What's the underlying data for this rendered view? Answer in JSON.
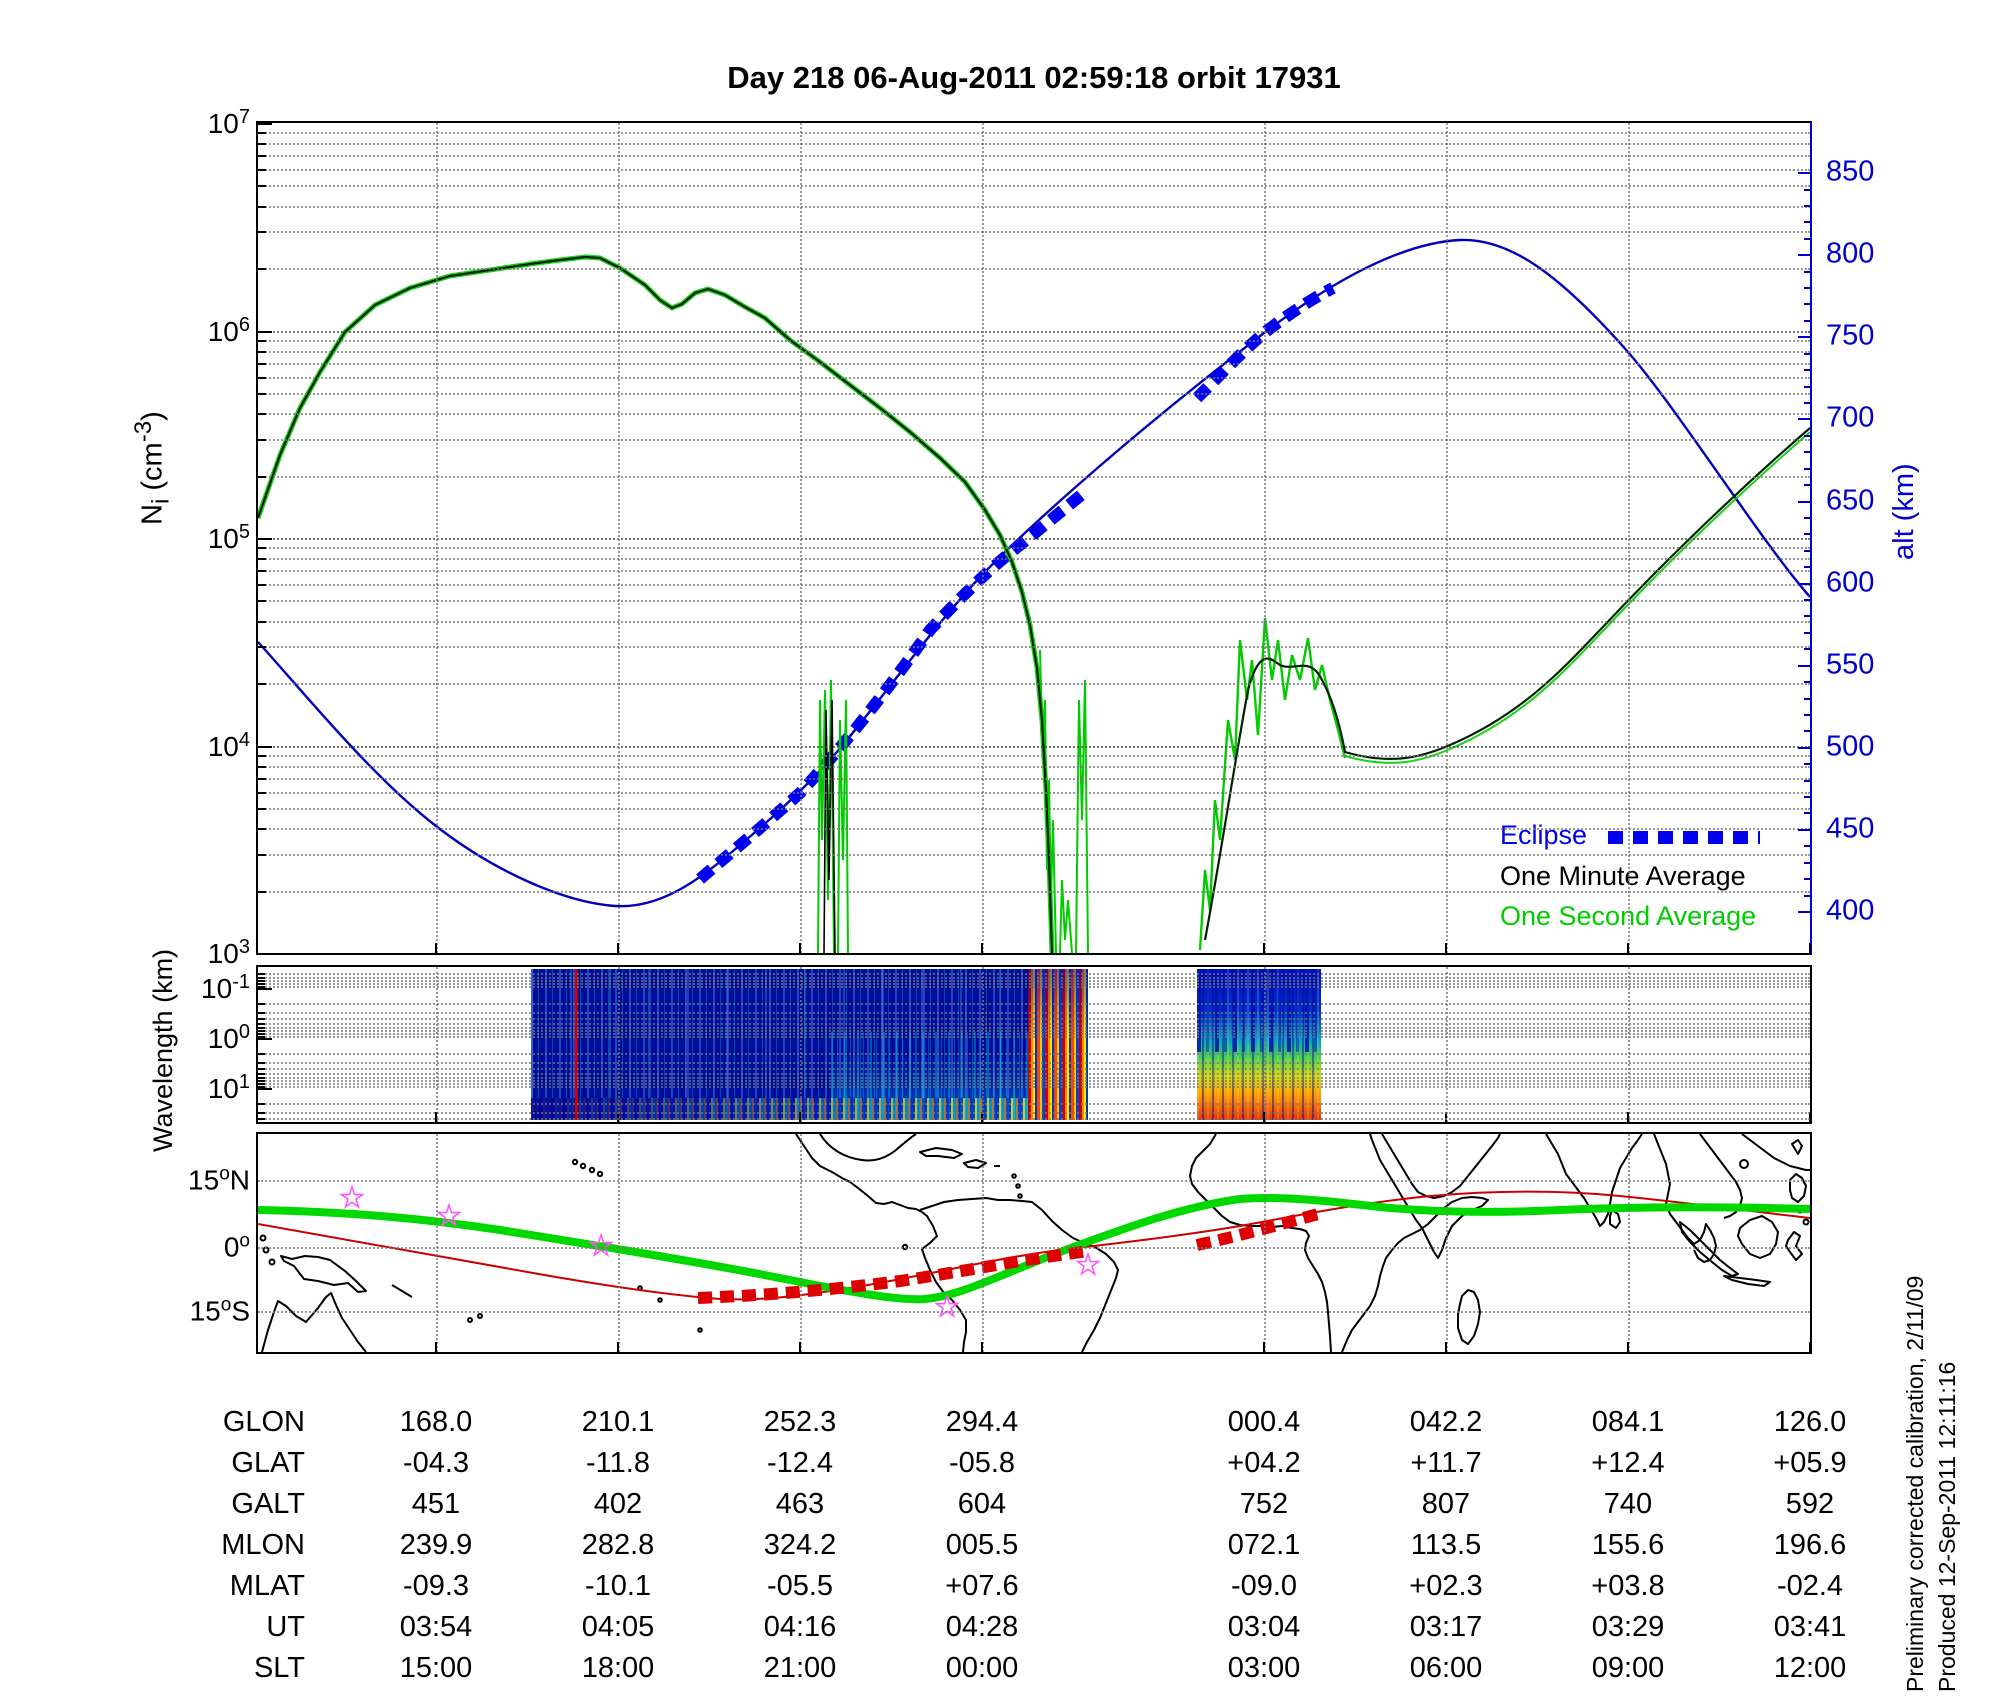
{
  "title": "Day 218  06-Aug-2011 02:59:18   orbit 17931",
  "colors": {
    "right_axis": "#0000cc",
    "eclipse": "#0000ee",
    "one_minute": "#000000",
    "one_second": "#00cc00",
    "map_track": "#00d800",
    "map_equator": "#cc0000",
    "map_eclipse": "#dd0000",
    "stars": "#ff55ff"
  },
  "top_plot": {
    "ni_axis": {
      "label_main": "N",
      "label_sub": "i",
      "label_mid": " (cm",
      "label_sup": "-3",
      "label_end": ")",
      "tick_exponents": [
        7,
        6,
        5,
        4,
        3
      ]
    },
    "alt_axis": {
      "label": "alt (km)",
      "ticks": [
        850,
        800,
        750,
        700,
        650,
        600,
        550,
        500,
        450,
        400
      ]
    },
    "legend": [
      {
        "label": "Eclipse",
        "color": "#0000ee",
        "style": "dashed"
      },
      {
        "label": "One Minute Average",
        "color": "#000000",
        "style": "line"
      },
      {
        "label": "One Second Average",
        "color": "#00cc00",
        "style": "line"
      }
    ]
  },
  "spectrogram": {
    "label": "Wavelength (km)",
    "tick_exponents": [
      -1,
      0,
      1
    ]
  },
  "map": {
    "lat_labels": [
      {
        "num": "15",
        "dir": "N"
      },
      {
        "num": "0",
        "dir": ""
      },
      {
        "num": "15",
        "dir": "S"
      }
    ],
    "star_count": 5
  },
  "table": {
    "row_labels": [
      "GLON",
      "GLAT",
      "GALT",
      "MLON",
      "MLAT",
      "UT",
      "SLT"
    ],
    "rows": [
      [
        "168.0",
        "210.1",
        "252.3",
        "294.4",
        "000.4",
        "042.2",
        "084.1",
        "126.0"
      ],
      [
        "-04.3",
        "-11.8",
        "-12.4",
        "-05.8",
        "+04.2",
        "+11.7",
        "+12.4",
        "+05.9"
      ],
      [
        "451",
        "402",
        "463",
        "604",
        "752",
        "807",
        "740",
        "592"
      ],
      [
        "239.9",
        "282.8",
        "324.2",
        "005.5",
        "072.1",
        "113.5",
        "155.6",
        "196.6"
      ],
      [
        "-09.3",
        "-10.1",
        "-05.5",
        "+07.6",
        "-09.0",
        "+02.3",
        "+03.8",
        "-02.4"
      ],
      [
        "03:54",
        "04:05",
        "04:16",
        "04:28",
        "03:04",
        "03:17",
        "03:29",
        "03:41"
      ],
      [
        "15:00",
        "18:00",
        "21:00",
        "00:00",
        "03:00",
        "06:00",
        "09:00",
        "12:00"
      ]
    ]
  },
  "footnotes": [
    "Preliminary corrected calibration, 2/11/09",
    "Produced 12-Sep-2011 12:11:16"
  ],
  "chart_data": {
    "type": "multi-panel",
    "panels": [
      {
        "type": "line",
        "title": "Day 218 06-Aug-2011 02:59:18 orbit 17931",
        "ylabel": "Ni (cm-3)",
        "ylim_log10": [
          3,
          7
        ],
        "grid": true,
        "y2label": "alt (km)",
        "y2lim": [
          395,
          858
        ],
        "x_axis": "solar local time, evenly spaced",
        "x_ticks": [
          "15:00",
          "18:00",
          "21:00",
          "00:00",
          "03:00",
          "06:00",
          "09:00",
          "12:00"
        ],
        "series": [
          {
            "name": "alt (km)",
            "axis": "right",
            "color": "#0000bb",
            "x_ut": [
              "03:54",
              "04:05",
              "04:16",
              "04:28",
              "03:04",
              "03:17",
              "03:29",
              "03:41"
            ],
            "values": [
              451,
              402,
              463,
              604,
              752,
              807,
              740,
              592
            ]
          },
          {
            "name": "One Minute Average",
            "axis": "left",
            "color": "#000000",
            "approx": true,
            "values_at_ticks": [
              1800000,
              2000000,
              850000,
              140000,
              26000,
              10000,
              44000,
              340000
            ]
          },
          {
            "name": "One Second Average",
            "axis": "left",
            "color": "#00cc00",
            "approx": true,
            "note": "tracks one-minute curve with deep spikes near the two data gaps"
          },
          {
            "name": "Eclipse",
            "color": "#0000ee",
            "style": "thick dashed drawn on altitude curve",
            "segments_slt": [
              [
                "19:20",
                "01:40"
              ],
              [
                "01:55",
                "03:55"
              ]
            ]
          }
        ],
        "legend_position": "lower right inside"
      },
      {
        "type": "heatmap",
        "ylabel": "Wavelength (km)",
        "y_ticks": [
          0.1,
          1,
          10
        ],
        "y_reversed": true,
        "palette": "dark blue -> cyan -> yellow -> red",
        "segments_slt": [
          [
            "16:30",
            "00:30"
          ],
          [
            "01:55",
            "03:55"
          ]
        ],
        "note": "power concentrated at long wavelengths (bottom), strongest at segment ends"
      },
      {
        "type": "map",
        "lat_gridlines": [
          15,
          0,
          -15
        ],
        "lon_span_deg": 360,
        "features": [
          {
            "name": "satellite ground track",
            "color": "green"
          },
          {
            "name": "magnetic equator",
            "color": "red"
          },
          {
            "name": "eclipse portions of track",
            "style": "red dashed"
          },
          {
            "name": "ground stations",
            "marker": "magenta stars",
            "count": 5
          }
        ]
      },
      {
        "type": "table",
        "row_labels": [
          "GLON",
          "GLAT",
          "GALT",
          "MLON",
          "MLAT",
          "UT",
          "SLT"
        ],
        "columns": [
          [
            "168.0",
            "-04.3",
            "451",
            "239.9",
            "-09.3",
            "03:54",
            "15:00"
          ],
          [
            "210.1",
            "-11.8",
            "402",
            "282.8",
            "-10.1",
            "04:05",
            "18:00"
          ],
          [
            "252.3",
            "-12.4",
            "463",
            "324.2",
            "-05.5",
            "04:16",
            "21:00"
          ],
          [
            "294.4",
            "-05.8",
            "604",
            "005.5",
            "+07.6",
            "04:28",
            "00:00"
          ],
          [
            "000.4",
            "+04.2",
            "752",
            "072.1",
            "-09.0",
            "03:04",
            "03:00"
          ],
          [
            "042.2",
            "+11.7",
            "807",
            "113.5",
            "+02.3",
            "03:17",
            "06:00"
          ],
          [
            "084.1",
            "+12.4",
            "740",
            "155.6",
            "+03.8",
            "03:29",
            "09:00"
          ],
          [
            "126.0",
            "+05.9",
            "592",
            "196.6",
            "-02.4",
            "03:41",
            "12:00"
          ]
        ]
      }
    ]
  }
}
